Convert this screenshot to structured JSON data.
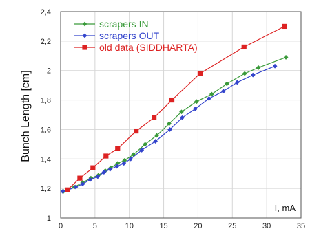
{
  "chart_data": {
    "type": "line",
    "title": "",
    "xlabel": "I, mA",
    "ylabel": "Bunch Length [cm]",
    "xlim": [
      0,
      35
    ],
    "ylim": [
      1,
      2.4
    ],
    "x_ticks": [
      "0",
      "5",
      "10",
      "15",
      "20",
      "25",
      "30",
      "35"
    ],
    "y_ticks": [
      "1",
      "1,2",
      "1,4",
      "1,6",
      "1,8",
      "2",
      "2,2",
      "2,4"
    ],
    "grid": true,
    "legend_position": "top-left",
    "series": [
      {
        "name": "scrapers IN",
        "color": "#3a9a3a",
        "marker": "diamond",
        "points": [
          [
            0.4,
            1.18
          ],
          [
            1.0,
            1.19
          ],
          [
            2.0,
            1.21
          ],
          [
            3.2,
            1.24
          ],
          [
            4.4,
            1.27
          ],
          [
            5.5,
            1.29
          ],
          [
            6.5,
            1.32
          ],
          [
            7.3,
            1.34
          ],
          [
            8.3,
            1.37
          ],
          [
            9.3,
            1.39
          ],
          [
            10.6,
            1.43
          ],
          [
            12.3,
            1.5
          ],
          [
            14.0,
            1.56
          ],
          [
            15.8,
            1.64
          ],
          [
            17.6,
            1.72
          ],
          [
            19.8,
            1.79
          ],
          [
            22.0,
            1.84
          ],
          [
            24.2,
            1.91
          ],
          [
            26.8,
            1.98
          ],
          [
            28.8,
            2.02
          ],
          [
            32.8,
            2.09
          ]
        ]
      },
      {
        "name": "scrapers OUT",
        "color": "#3344cc",
        "marker": "diamond",
        "points": [
          [
            0.3,
            1.18
          ],
          [
            1.1,
            1.19
          ],
          [
            2.2,
            1.21
          ],
          [
            3.2,
            1.23
          ],
          [
            4.3,
            1.26
          ],
          [
            5.4,
            1.28
          ],
          [
            6.3,
            1.31
          ],
          [
            7.2,
            1.33
          ],
          [
            8.2,
            1.35
          ],
          [
            9.2,
            1.37
          ],
          [
            10.2,
            1.4
          ],
          [
            11.8,
            1.46
          ],
          [
            13.8,
            1.52
          ],
          [
            15.9,
            1.6
          ],
          [
            17.7,
            1.68
          ],
          [
            19.6,
            1.74
          ],
          [
            21.6,
            1.81
          ],
          [
            23.7,
            1.86
          ],
          [
            25.7,
            1.92
          ],
          [
            28.0,
            1.97
          ],
          [
            31.2,
            2.03
          ]
        ]
      },
      {
        "name": "old data (SIDDHARTA)",
        "color": "#dd2222",
        "marker": "square",
        "points": [
          [
            1.0,
            1.19
          ],
          [
            2.8,
            1.27
          ],
          [
            4.7,
            1.34
          ],
          [
            6.6,
            1.42
          ],
          [
            8.3,
            1.47
          ],
          [
            11.0,
            1.59
          ],
          [
            13.6,
            1.68
          ],
          [
            16.2,
            1.8
          ],
          [
            20.3,
            1.98
          ],
          [
            26.7,
            2.16
          ],
          [
            32.6,
            2.3
          ]
        ]
      }
    ]
  }
}
